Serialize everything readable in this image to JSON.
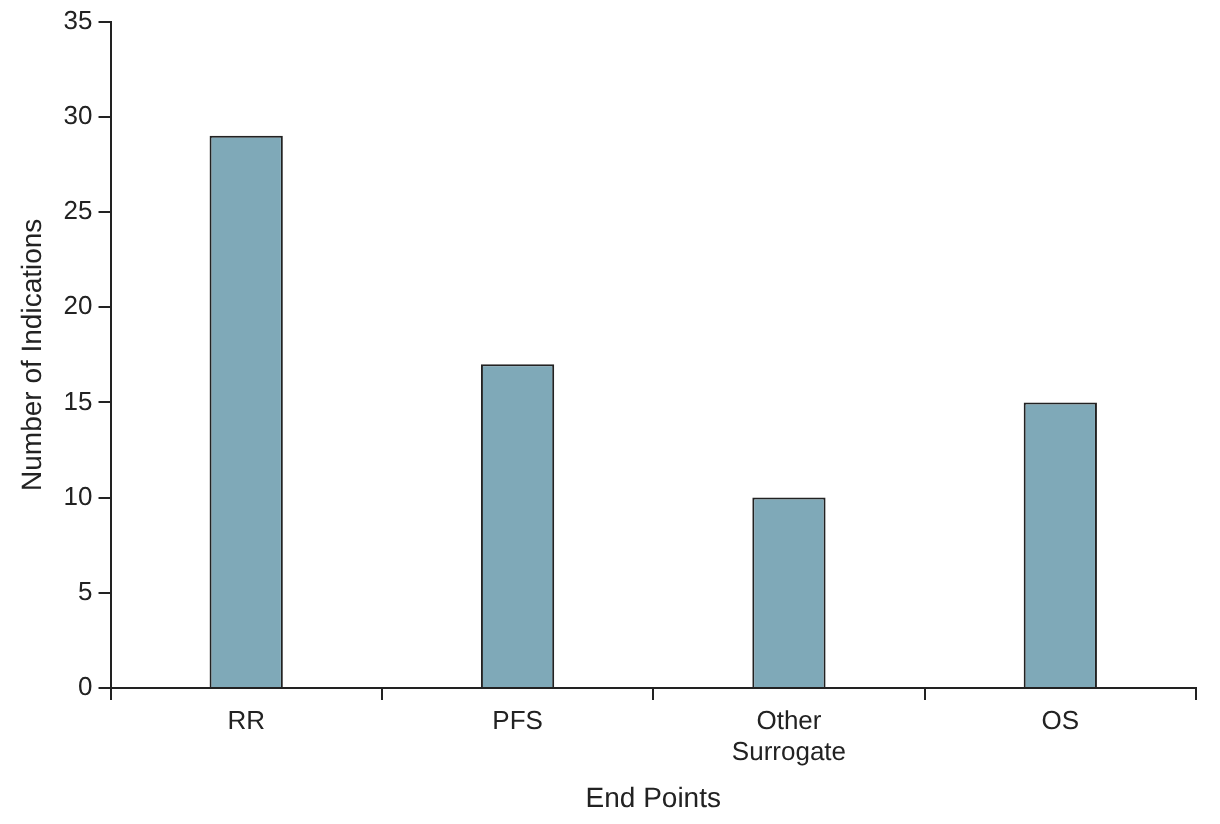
{
  "chart_data": {
    "type": "bar",
    "xlabel": "End Points",
    "ylabel": "Number of Indications",
    "categories": [
      "RR",
      "PFS",
      "Other Surrogate",
      "OS"
    ],
    "values": [
      29,
      17,
      10,
      15
    ],
    "color": "#7fa9b8",
    "ylim": [
      0,
      35
    ],
    "yticks": [
      0,
      5,
      10,
      15,
      20,
      25,
      30,
      35
    ],
    "grid": false
  }
}
